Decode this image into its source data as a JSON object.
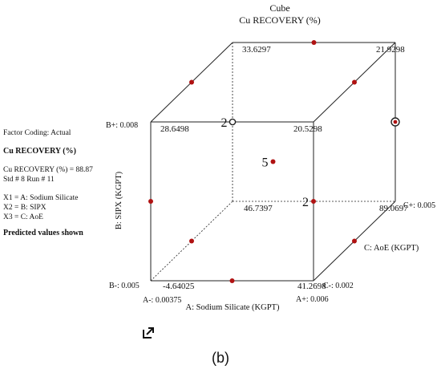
{
  "chart_data": {
    "type": "cube",
    "title": "Cube",
    "subtitle": "Cu RECOVERY (%)",
    "axes": {
      "x": {
        "label": "A: Sodium Silicate  (KGPT)",
        "low_label": "A-: 0.00375",
        "high_label": "A+: 0.006"
      },
      "y": {
        "label": "B: SIPX (KGPT)",
        "low_label": "B-: 0.005",
        "high_label": "B+: 0.008"
      },
      "z": {
        "label": "C: AoE (KGPT)",
        "low_label": "C-: 0.002",
        "high_label": "C+: 0.005"
      }
    },
    "corners": [
      {
        "A": "-",
        "B": "-",
        "C": "-",
        "value": -4.64025
      },
      {
        "A": "+",
        "B": "-",
        "C": "-",
        "value": 41.2698
      },
      {
        "A": "-",
        "B": "+",
        "C": "-",
        "value": 28.6498
      },
      {
        "A": "+",
        "B": "+",
        "C": "-",
        "value": 20.5298
      },
      {
        "A": "-",
        "B": "-",
        "C": "+",
        "value": 46.7397
      },
      {
        "A": "+",
        "B": "-",
        "C": "+",
        "value": 89.0697
      },
      {
        "A": "-",
        "B": "+",
        "C": "+",
        "value": 33.6297
      },
      {
        "A": "+",
        "B": "+",
        "C": "+",
        "value": 21.9298
      }
    ],
    "corner_labels": [
      "-4.64025",
      "41.2698",
      "28.6498",
      "20.5298",
      "46.7397",
      "89.0697",
      "33.6297",
      "21.9298"
    ],
    "design_points": [
      {
        "A": 0,
        "B": -1,
        "C": -1
      },
      {
        "A": 1,
        "B": -1,
        "C": 0
      },
      {
        "A": 0,
        "B": 1,
        "C": -1,
        "runs": "2"
      },
      {
        "A": 1,
        "B": 0,
        "C": -1,
        "runs": "2"
      },
      {
        "A": -1,
        "B": 0,
        "C": -1
      },
      {
        "A": -1,
        "B": -1,
        "C": 0
      },
      {
        "A": -1,
        "B": 1,
        "C": 0
      },
      {
        "A": 0,
        "B": 1,
        "C": 1
      },
      {
        "A": 1,
        "B": 1,
        "C": 0
      },
      {
        "A": 0,
        "B": 0,
        "C": 0,
        "runs": "5"
      },
      {
        "A": 1,
        "B": 0,
        "C": 1,
        "highlighted": true
      },
      {
        "A": -1,
        "B": 0,
        "C": 1,
        "open": true
      }
    ],
    "colors": {
      "point": "#b01212",
      "edge": "#222222"
    }
  },
  "panel": {
    "factor_coding": "Factor Coding: Actual",
    "response_title": "Cu RECOVERY (%)",
    "prediction": "Cu RECOVERY (%) = 88.87",
    "std_run": "Std # 8 Run # 11",
    "x1": "X1 = A: Sodium Silicate",
    "x2": "X2 = B: SIPX",
    "x3": "X3 = C: AoE",
    "predicted_note": "Predicted values shown"
  },
  "figure_label": "(b)",
  "expand_icon": "expand-icon"
}
